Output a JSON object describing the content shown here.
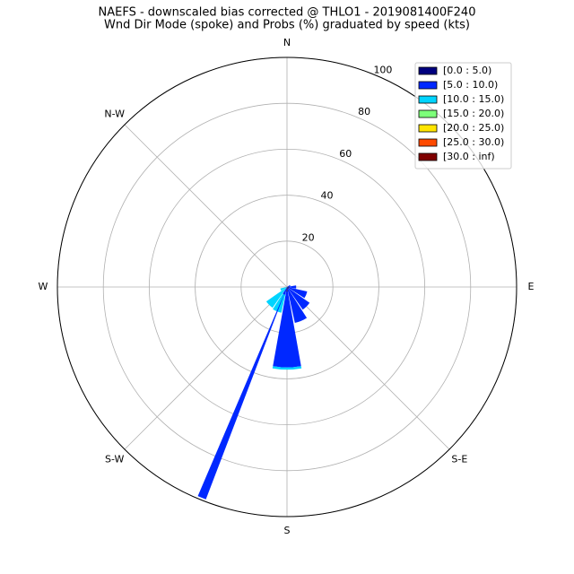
{
  "chart_data": {
    "type": "windrose",
    "title": "NAEFS - downscaled bias corrected @ THLO1 - 2019081400F240",
    "subtitle": "Wnd Dir Mode (spoke) and Probs (%) graduated by speed (kts)",
    "x": [
      0,
      22.5,
      45,
      67.5,
      90,
      112.5,
      135,
      157.5,
      180,
      202.5,
      225,
      247.5,
      270,
      292.5,
      315,
      337.5
    ],
    "xticks": [
      {
        "value": 0,
        "label": "N"
      },
      {
        "value": 90,
        "label": "E"
      },
      {
        "value": 135,
        "label": "S-E"
      },
      {
        "value": 180,
        "label": "S"
      },
      {
        "value": 225,
        "label": "S-W"
      },
      {
        "value": 270,
        "label": "W"
      },
      {
        "value": 315,
        "label": "N-W"
      }
    ],
    "ylim": [
      0,
      100
    ],
    "yticks": [
      20,
      40,
      60,
      80,
      100
    ],
    "grid": true,
    "legend": "upper right",
    "series": [
      {
        "name": "[0.0 : 5.0)",
        "color": "#00007f",
        "values": [
          0,
          0,
          0,
          0.5,
          1,
          1,
          1,
          1,
          2,
          0.5,
          0,
          0,
          0,
          0,
          0,
          0
        ]
      },
      {
        "name": "[5.0 : 10.0)",
        "color": "#0028ff",
        "values": [
          0,
          0,
          0,
          1,
          3,
          8,
          11,
          15,
          33,
          3,
          0,
          0,
          0,
          0,
          0,
          0
        ]
      },
      {
        "name": "[10.0 : 15.0)",
        "color": "#00d4ff",
        "values": [
          0,
          0,
          0,
          0,
          0,
          0,
          0,
          0,
          1,
          8,
          11,
          3,
          0,
          0,
          0,
          0
        ]
      },
      {
        "name": "[15.0 : 20.0)",
        "color": "#7dff7a",
        "values": [
          0,
          0,
          0,
          0,
          0,
          0,
          0,
          0,
          0,
          0,
          0,
          0,
          0,
          0,
          0,
          0
        ]
      },
      {
        "name": "[20.0 : 25.0)",
        "color": "#ffe500",
        "values": [
          0,
          0,
          0,
          0,
          0,
          0,
          0,
          0,
          0,
          0,
          0,
          0,
          0,
          0,
          0,
          0
        ]
      },
      {
        "name": "[25.0 : 30.0)",
        "color": "#ff4a00",
        "values": [
          0,
          0,
          0,
          0,
          0,
          0,
          0,
          0,
          0,
          0,
          0,
          0,
          0,
          0,
          0,
          0
        ]
      },
      {
        "name": "[30.0 : inf)",
        "color": "#7f0000",
        "values": [
          0,
          0,
          0,
          0,
          0,
          0,
          0,
          0,
          0,
          0,
          0,
          0,
          0,
          0,
          0,
          0
        ]
      }
    ],
    "spoke": {
      "theta": 202,
      "value": 99,
      "color": "#0028ff"
    }
  }
}
